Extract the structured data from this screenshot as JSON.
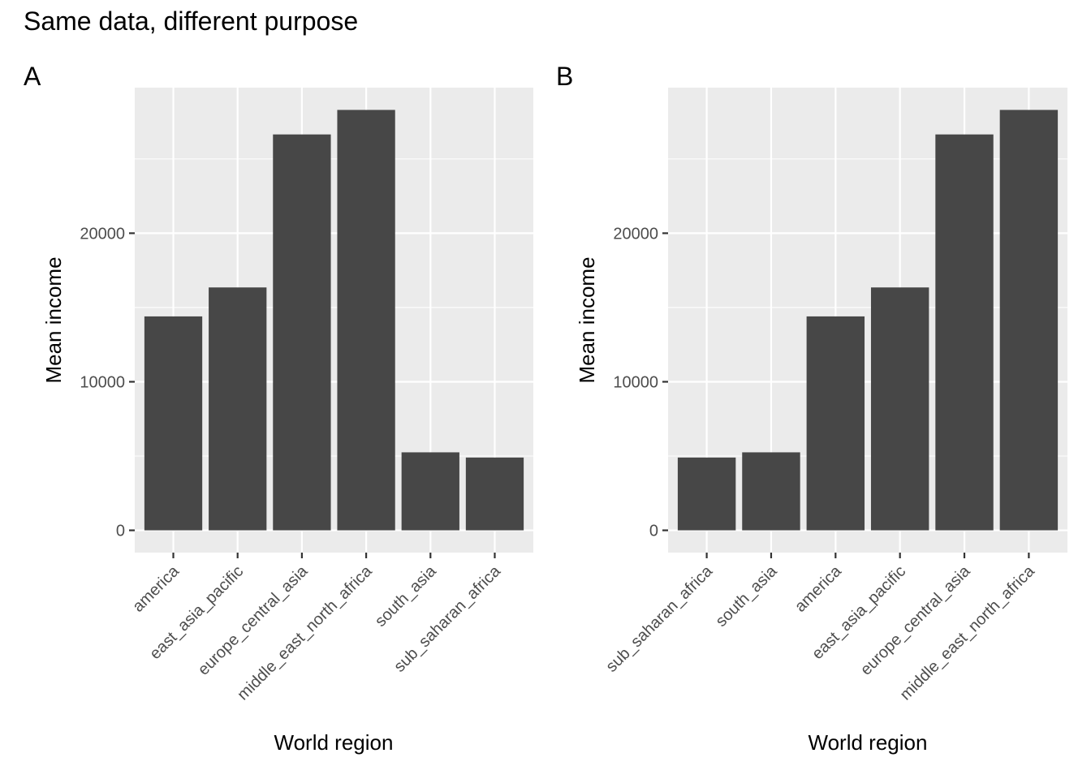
{
  "title": "Same data, different purpose",
  "chart_data": [
    {
      "type": "bar",
      "panel": "A",
      "categories": [
        "america",
        "east_asia_pacific",
        "europe_central_asia",
        "middle_east_north_africa",
        "south_asia",
        "sub_saharan_africa"
      ],
      "values": [
        14400,
        16350,
        26650,
        28300,
        5250,
        4900
      ],
      "xlabel": "World region",
      "ylabel": "Mean income",
      "ylim": [
        -1500,
        29800
      ],
      "yticks": [
        0,
        10000,
        20000
      ],
      "ytick_labels": [
        "0",
        "10000",
        "20000"
      ],
      "grid": true
    },
    {
      "type": "bar",
      "panel": "B",
      "categories": [
        "sub_saharan_africa",
        "south_asia",
        "america",
        "east_asia_pacific",
        "europe_central_asia",
        "middle_east_north_africa"
      ],
      "values": [
        4900,
        5250,
        14400,
        16350,
        26650,
        28300
      ],
      "xlabel": "World region",
      "ylabel": "Mean income",
      "ylim": [
        -1500,
        29800
      ],
      "yticks": [
        0,
        10000,
        20000
      ],
      "ytick_labels": [
        "0",
        "10000",
        "20000"
      ],
      "grid": true
    }
  ],
  "colors": {
    "panel_bg": "#ebebeb",
    "grid": "#ffffff",
    "bar": "#474747",
    "tick": "#333333",
    "tick_text": "#4d4d4d"
  }
}
